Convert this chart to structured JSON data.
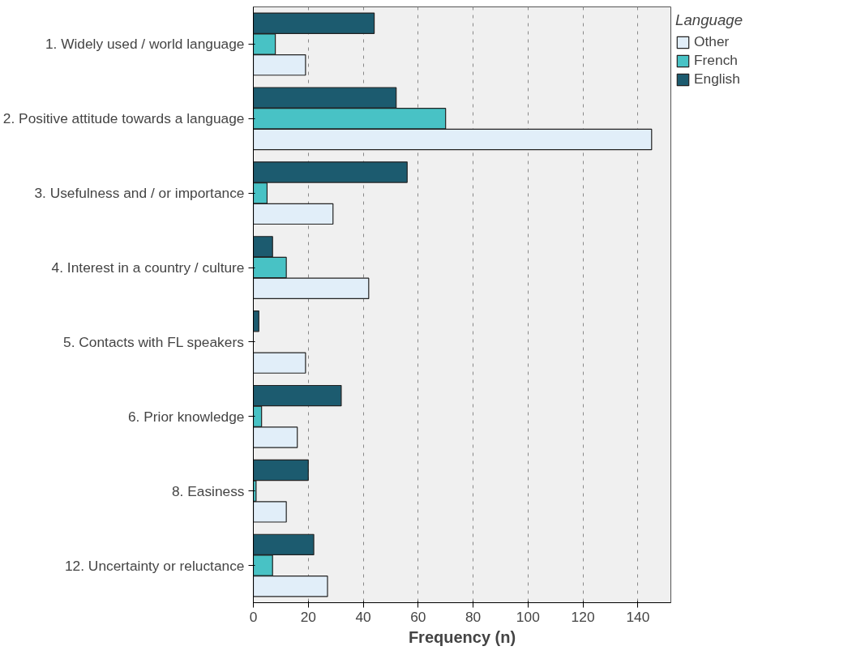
{
  "chart_data": {
    "type": "bar",
    "orientation": "horizontal",
    "xlabel": "Frequency (n)",
    "legend_title": "Language",
    "legend": "top right",
    "grid": "x",
    "categories": [
      "1. Widely used / world language",
      "2. Positive attitude towards a language",
      "3. Usefulness and / or importance",
      "4. Interest in a country / culture",
      "5. Contacts with FL speakers",
      "6. Prior knowledge",
      "8. Easiness",
      "12. Uncertainty or reluctance"
    ],
    "series": [
      {
        "name": "Other",
        "color": "#e1eef9",
        "values": [
          19,
          145,
          29,
          42,
          19,
          16,
          12,
          27
        ]
      },
      {
        "name": "French",
        "color": "#48c2c5",
        "values": [
          8,
          70,
          5,
          12,
          null,
          3,
          1,
          7
        ]
      },
      {
        "name": "English",
        "color": "#1c5b6f",
        "values": [
          44,
          52,
          56,
          7,
          2,
          32,
          20,
          22
        ]
      }
    ],
    "xlim": [
      0,
      152
    ],
    "xticks": [
      0,
      20,
      40,
      60,
      80,
      100,
      120,
      140
    ]
  }
}
